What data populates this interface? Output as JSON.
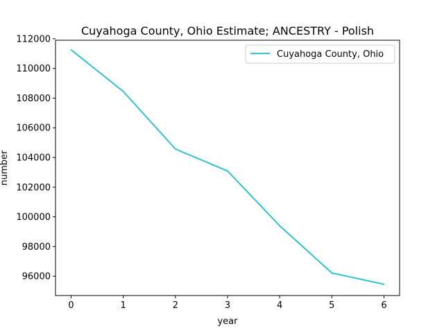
{
  "chart_data": {
    "type": "line",
    "title": "Cuyahoga County, Ohio Estimate; ANCESTRY - Polish",
    "xlabel": "year",
    "ylabel": "number",
    "x": [
      0,
      1,
      2,
      3,
      4,
      5,
      6
    ],
    "series": [
      {
        "name": "Cuyahoga County, Ohio",
        "color": "#17becf",
        "values": [
          111250,
          108450,
          104570,
          103090,
          99400,
          96220,
          95460
        ]
      }
    ],
    "xlim": [
      -0.3,
      6.3
    ],
    "ylim": [
      94700,
      111900
    ],
    "xticks": [
      0,
      1,
      2,
      3,
      4,
      5,
      6
    ],
    "yticks": [
      96000,
      98000,
      100000,
      102000,
      104000,
      106000,
      108000,
      110000,
      112000
    ],
    "grid": false,
    "legend": "upper right"
  }
}
